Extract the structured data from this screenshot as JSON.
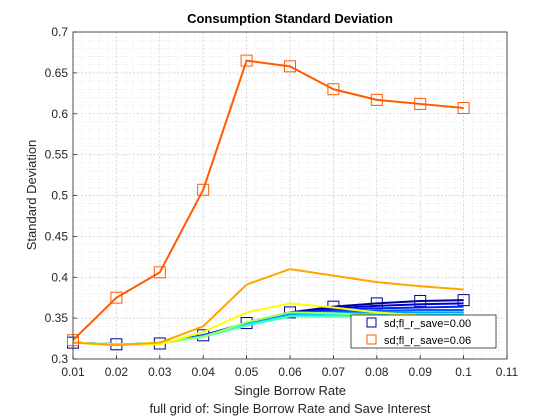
{
  "chart_data": {
    "type": "line",
    "title": "Consumption Standard Deviation",
    "xlabel": "Single Borrow Rate",
    "ylabel": "Standard Deviation",
    "subtitle": "full grid of: Single Borrow Rate and Save Interest",
    "xlim": [
      0.01,
      0.11
    ],
    "ylim": [
      0.3,
      0.7
    ],
    "xticks": [
      "0.01",
      "0.02",
      "0.03",
      "0.04",
      "0.05",
      "0.06",
      "0.07",
      "0.08",
      "0.09",
      "0.1",
      "0.11"
    ],
    "yticks": [
      "0.3",
      "0.35",
      "0.4",
      "0.45",
      "0.5",
      "0.55",
      "0.6",
      "0.65",
      "0.7"
    ],
    "grid": true,
    "minor_grid": true,
    "legend_position": "bottom-right",
    "x": [
      0.01,
      0.02,
      0.03,
      0.04,
      0.05,
      0.06,
      0.07,
      0.08,
      0.09,
      0.1
    ],
    "series": [
      {
        "color": "#00008f",
        "values": [
          0.32,
          0.318,
          0.319,
          0.329,
          0.344,
          0.357,
          0.364,
          0.368,
          0.371,
          0.372
        ]
      },
      {
        "color": "#0000cf",
        "values": [
          0.32,
          0.318,
          0.319,
          0.329,
          0.344,
          0.357,
          0.362,
          0.365,
          0.367,
          0.368
        ]
      },
      {
        "color": "#0020ff",
        "values": [
          0.32,
          0.318,
          0.319,
          0.329,
          0.343,
          0.356,
          0.36,
          0.362,
          0.363,
          0.364
        ]
      },
      {
        "color": "#0060ff",
        "values": [
          0.32,
          0.318,
          0.319,
          0.328,
          0.343,
          0.355,
          0.358,
          0.359,
          0.36,
          0.36
        ]
      },
      {
        "color": "#00a0ff",
        "values": [
          0.32,
          0.318,
          0.319,
          0.328,
          0.342,
          0.354,
          0.356,
          0.357,
          0.357,
          0.357
        ]
      },
      {
        "color": "#00e0ff",
        "values": [
          0.32,
          0.318,
          0.319,
          0.328,
          0.342,
          0.353,
          0.354,
          0.354,
          0.354,
          0.354
        ]
      },
      {
        "color": "#40ffbf",
        "values": [
          0.32,
          0.318,
          0.319,
          0.327,
          0.341,
          0.352,
          0.352,
          0.352,
          0.351,
          0.351
        ]
      },
      {
        "color": "#a0ff60",
        "values": [
          0.32,
          0.318,
          0.319,
          0.327,
          0.345,
          0.357,
          0.356,
          0.353,
          0.35,
          0.349
        ]
      },
      {
        "color": "#ffff00",
        "values": [
          0.32,
          0.317,
          0.318,
          0.333,
          0.357,
          0.368,
          0.363,
          0.357,
          0.353,
          0.35
        ]
      },
      {
        "color": "#ffa500",
        "values": [
          0.32,
          0.317,
          0.32,
          0.34,
          0.391,
          0.41,
          0.402,
          0.394,
          0.389,
          0.385
        ]
      },
      {
        "color": "#ff5a00",
        "values": [
          0.323,
          0.375,
          0.406,
          0.507,
          0.665,
          0.658,
          0.63,
          0.617,
          0.612,
          0.607
        ]
      }
    ],
    "legend": [
      {
        "label": "sd;fl_r_save=0.00",
        "color": "#00008f"
      },
      {
        "label": "sd;fl_r_save=0.06",
        "color": "#ff5a00"
      }
    ]
  }
}
